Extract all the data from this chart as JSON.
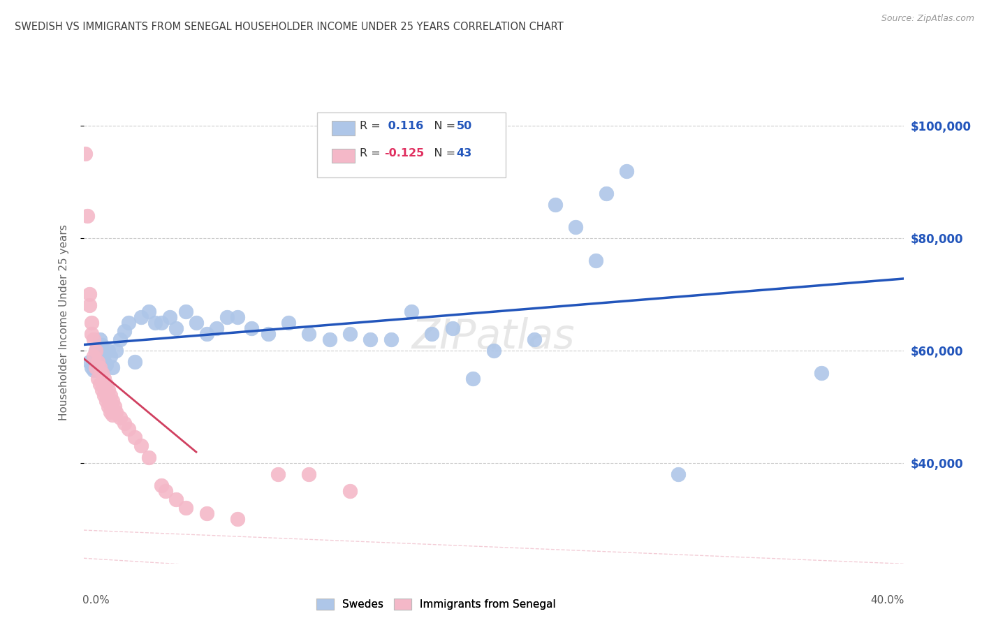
{
  "title": "SWEDISH VS IMMIGRANTS FROM SENEGAL HOUSEHOLDER INCOME UNDER 25 YEARS CORRELATION CHART",
  "source": "Source: ZipAtlas.com",
  "ylabel": "Householder Income Under 25 years",
  "ytick_values": [
    40000,
    60000,
    80000,
    100000
  ],
  "legend_bottom": [
    "Swedes",
    "Immigrants from Senegal"
  ],
  "swedes_color": "#aec6e8",
  "senegal_color": "#f4b8c8",
  "swedes_line_color": "#2255bb",
  "senegal_line_color": "#d04060",
  "confband_color": "#f0c0cc",
  "title_color": "#404040",
  "right_axis_color": "#2255bb",
  "xlim": [
    0.0,
    0.4
  ],
  "ylim": [
    22000,
    108000
  ],
  "swedes_scatter": [
    [
      0.003,
      58000
    ],
    [
      0.004,
      57000
    ],
    [
      0.005,
      56500
    ],
    [
      0.006,
      60000
    ],
    [
      0.007,
      59000
    ],
    [
      0.008,
      62000
    ],
    [
      0.009,
      61000
    ],
    [
      0.01,
      58000
    ],
    [
      0.011,
      57500
    ],
    [
      0.012,
      60000
    ],
    [
      0.013,
      59000
    ],
    [
      0.014,
      57000
    ],
    [
      0.016,
      60000
    ],
    [
      0.018,
      62000
    ],
    [
      0.02,
      63500
    ],
    [
      0.022,
      65000
    ],
    [
      0.025,
      58000
    ],
    [
      0.028,
      66000
    ],
    [
      0.032,
      67000
    ],
    [
      0.035,
      65000
    ],
    [
      0.038,
      65000
    ],
    [
      0.042,
      66000
    ],
    [
      0.045,
      64000
    ],
    [
      0.05,
      67000
    ],
    [
      0.055,
      65000
    ],
    [
      0.06,
      63000
    ],
    [
      0.065,
      64000
    ],
    [
      0.07,
      66000
    ],
    [
      0.075,
      66000
    ],
    [
      0.082,
      64000
    ],
    [
      0.09,
      63000
    ],
    [
      0.1,
      65000
    ],
    [
      0.11,
      63000
    ],
    [
      0.12,
      62000
    ],
    [
      0.13,
      63000
    ],
    [
      0.14,
      62000
    ],
    [
      0.15,
      62000
    ],
    [
      0.16,
      67000
    ],
    [
      0.17,
      63000
    ],
    [
      0.18,
      64000
    ],
    [
      0.19,
      55000
    ],
    [
      0.2,
      60000
    ],
    [
      0.22,
      62000
    ],
    [
      0.23,
      86000
    ],
    [
      0.24,
      82000
    ],
    [
      0.25,
      76000
    ],
    [
      0.255,
      88000
    ],
    [
      0.265,
      92000
    ],
    [
      0.29,
      38000
    ],
    [
      0.36,
      56000
    ]
  ],
  "senegal_scatter": [
    [
      0.001,
      95000
    ],
    [
      0.002,
      84000
    ],
    [
      0.003,
      70000
    ],
    [
      0.003,
      68000
    ],
    [
      0.004,
      65000
    ],
    [
      0.004,
      63000
    ],
    [
      0.005,
      62000
    ],
    [
      0.005,
      59000
    ],
    [
      0.006,
      60000
    ],
    [
      0.006,
      57000
    ],
    [
      0.007,
      58000
    ],
    [
      0.007,
      55000
    ],
    [
      0.008,
      57000
    ],
    [
      0.008,
      54000
    ],
    [
      0.009,
      56000
    ],
    [
      0.009,
      53000
    ],
    [
      0.01,
      55000
    ],
    [
      0.01,
      52000
    ],
    [
      0.011,
      54000
    ],
    [
      0.011,
      51000
    ],
    [
      0.012,
      53000
    ],
    [
      0.012,
      50000
    ],
    [
      0.013,
      52000
    ],
    [
      0.013,
      49000
    ],
    [
      0.014,
      51000
    ],
    [
      0.014,
      48500
    ],
    [
      0.015,
      50000
    ],
    [
      0.016,
      49000
    ],
    [
      0.018,
      48000
    ],
    [
      0.02,
      47000
    ],
    [
      0.022,
      46000
    ],
    [
      0.025,
      44500
    ],
    [
      0.028,
      43000
    ],
    [
      0.032,
      41000
    ],
    [
      0.038,
      36000
    ],
    [
      0.04,
      35000
    ],
    [
      0.045,
      33500
    ],
    [
      0.05,
      32000
    ],
    [
      0.06,
      31000
    ],
    [
      0.075,
      30000
    ],
    [
      0.095,
      38000
    ],
    [
      0.11,
      38000
    ],
    [
      0.13,
      35000
    ]
  ],
  "swedes_line": [
    [
      0.0,
      57000
    ],
    [
      0.4,
      63500
    ]
  ],
  "senegal_line": [
    [
      0.0,
      57500
    ],
    [
      0.05,
      50000
    ]
  ],
  "confband_line1": [
    [
      0.02,
      20000
    ],
    [
      0.4,
      15000
    ]
  ],
  "confband_line2": [
    [
      0.0,
      25000
    ],
    [
      0.3,
      5000
    ]
  ]
}
